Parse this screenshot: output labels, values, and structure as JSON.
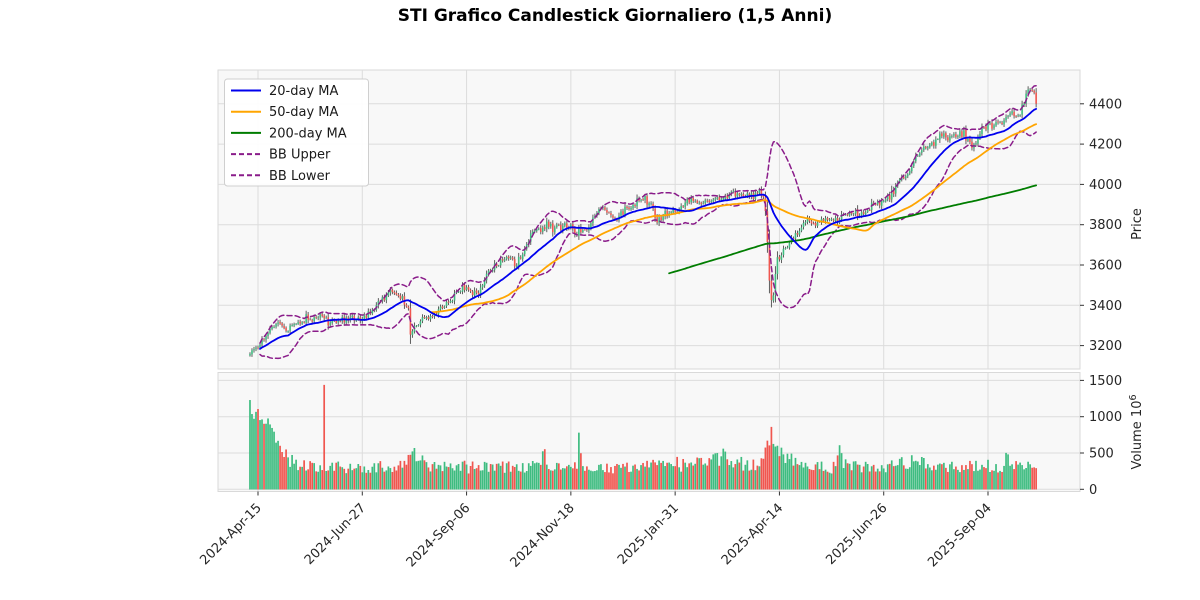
{
  "chart_data": {
    "type": "candlestick",
    "title": "STI Grafico Candlestick Giornaliero (1,5 Anni)",
    "legend": {
      "position": "upper-left",
      "items": [
        {
          "label": "20-day MA",
          "color": "#0000ee",
          "dash": "solid"
        },
        {
          "label": "50-day MA",
          "color": "#ffa500",
          "dash": "solid"
        },
        {
          "label": "200-day MA",
          "color": "#007d00",
          "dash": "solid"
        },
        {
          "label": "BB Upper",
          "color": "#8a1c8a",
          "dash": "dashed"
        },
        {
          "label": "BB Lower",
          "color": "#8a1c8a",
          "dash": "dashed"
        }
      ]
    },
    "x_axis": {
      "ticks": [
        {
          "label": "2024-Apr-15",
          "day": 4
        },
        {
          "label": "2024-Jun-27",
          "day": 56
        },
        {
          "label": "2024-Sep-06",
          "day": 108
        },
        {
          "label": "2024-Nov-18",
          "day": 160
        },
        {
          "label": "2025-Jan-31",
          "day": 212
        },
        {
          "label": "2025-Apr-14",
          "day": 264
        },
        {
          "label": "2025-Jun-26",
          "day": 316
        },
        {
          "label": "2025-Sep-04",
          "day": 368
        }
      ]
    },
    "price_axis": {
      "label": "Price",
      "ticks": [
        3200,
        3400,
        3600,
        3800,
        4000,
        4200,
        4400
      ]
    },
    "volume_axis": {
      "label_base": "Volume 10",
      "label_sup": "6",
      "ticks": [
        0,
        500,
        1000,
        1500
      ]
    },
    "num_days": 393,
    "close_keyframes": [
      [
        0,
        3160
      ],
      [
        2,
        3175
      ],
      [
        4,
        3180
      ],
      [
        7,
        3240
      ],
      [
        10,
        3280
      ],
      [
        14,
        3300
      ],
      [
        18,
        3285
      ],
      [
        22,
        3310
      ],
      [
        26,
        3320
      ],
      [
        30,
        3335
      ],
      [
        34,
        3345
      ],
      [
        38,
        3318
      ],
      [
        42,
        3320
      ],
      [
        46,
        3335
      ],
      [
        50,
        3330
      ],
      [
        56,
        3332
      ],
      [
        60,
        3370
      ],
      [
        64,
        3420
      ],
      [
        68,
        3455
      ],
      [
        71,
        3475
      ],
      [
        74,
        3445
      ],
      [
        77,
        3430
      ],
      [
        79,
        3380
      ],
      [
        80,
        3245
      ],
      [
        81,
        3260
      ],
      [
        83,
        3295
      ],
      [
        86,
        3320
      ],
      [
        90,
        3350
      ],
      [
        94,
        3370
      ],
      [
        98,
        3420
      ],
      [
        102,
        3460
      ],
      [
        106,
        3480
      ],
      [
        108,
        3490
      ],
      [
        111,
        3450
      ],
      [
        114,
        3465
      ],
      [
        118,
        3545
      ],
      [
        122,
        3600
      ],
      [
        126,
        3628
      ],
      [
        129,
        3640
      ],
      [
        132,
        3612
      ],
      [
        135,
        3655
      ],
      [
        138,
        3700
      ],
      [
        141,
        3755
      ],
      [
        144,
        3785
      ],
      [
        148,
        3810
      ],
      [
        151,
        3780
      ],
      [
        154,
        3795
      ],
      [
        157,
        3805
      ],
      [
        160,
        3790
      ],
      [
        163,
        3745
      ],
      [
        166,
        3760
      ],
      [
        170,
        3820
      ],
      [
        174,
        3865
      ],
      [
        177,
        3880
      ],
      [
        180,
        3860
      ],
      [
        183,
        3835
      ],
      [
        186,
        3855
      ],
      [
        190,
        3890
      ],
      [
        194,
        3915
      ],
      [
        197,
        3925
      ],
      [
        200,
        3890
      ],
      [
        203,
        3840
      ],
      [
        206,
        3850
      ],
      [
        209,
        3860
      ],
      [
        212,
        3870
      ],
      [
        216,
        3892
      ],
      [
        220,
        3910
      ],
      [
        224,
        3900
      ],
      [
        228,
        3928
      ],
      [
        232,
        3925
      ],
      [
        236,
        3945
      ],
      [
        240,
        3958
      ],
      [
        244,
        3935
      ],
      [
        248,
        3940
      ],
      [
        252,
        3950
      ],
      [
        255,
        3945
      ],
      [
        256,
        3920
      ],
      [
        257,
        3870
      ],
      [
        258,
        3710
      ],
      [
        259,
        3540
      ],
      [
        260,
        3420
      ],
      [
        261,
        3480
      ],
      [
        262,
        3560
      ],
      [
        263,
        3620
      ],
      [
        264,
        3650
      ],
      [
        266,
        3680
      ],
      [
        268,
        3705
      ],
      [
        272,
        3755
      ],
      [
        276,
        3788
      ],
      [
        280,
        3808
      ],
      [
        284,
        3828
      ],
      [
        288,
        3818
      ],
      [
        292,
        3838
      ],
      [
        296,
        3850
      ],
      [
        300,
        3858
      ],
      [
        304,
        3838
      ],
      [
        308,
        3868
      ],
      [
        312,
        3898
      ],
      [
        316,
        3928
      ],
      [
        320,
        3958
      ],
      [
        324,
        4000
      ],
      [
        328,
        4058
      ],
      [
        332,
        4118
      ],
      [
        336,
        4178
      ],
      [
        340,
        4218
      ],
      [
        344,
        4238
      ],
      [
        348,
        4228
      ],
      [
        352,
        4248
      ],
      [
        356,
        4238
      ],
      [
        358,
        4205
      ],
      [
        360,
        4190
      ],
      [
        362,
        4218
      ],
      [
        364,
        4255
      ],
      [
        366,
        4285
      ],
      [
        368,
        4298
      ],
      [
        372,
        4305
      ],
      [
        376,
        4330
      ],
      [
        380,
        4345
      ],
      [
        382,
        4330
      ],
      [
        384,
        4365
      ],
      [
        386,
        4415
      ],
      [
        388,
        4452
      ],
      [
        389,
        4468
      ],
      [
        390,
        4448
      ],
      [
        391,
        4435
      ],
      [
        392,
        4385
      ]
    ],
    "volume_keyframes": [
      [
        0,
        1180
      ],
      [
        2,
        1000
      ],
      [
        4,
        1120
      ],
      [
        6,
        950
      ],
      [
        8,
        880
      ],
      [
        10,
        960
      ],
      [
        12,
        740
      ],
      [
        14,
        620
      ],
      [
        16,
        500
      ],
      [
        18,
        430
      ],
      [
        20,
        390
      ],
      [
        24,
        340
      ],
      [
        28,
        310
      ],
      [
        36,
        290
      ],
      [
        37,
        1450
      ],
      [
        38,
        300
      ],
      [
        50,
        300
      ],
      [
        70,
        310
      ],
      [
        78,
        330
      ],
      [
        79,
        420
      ],
      [
        80,
        600
      ],
      [
        81,
        520
      ],
      [
        83,
        430
      ],
      [
        90,
        300
      ],
      [
        100,
        300
      ],
      [
        105,
        290
      ],
      [
        107,
        470
      ],
      [
        108,
        300
      ],
      [
        120,
        310
      ],
      [
        130,
        300
      ],
      [
        144,
        310
      ],
      [
        146,
        550
      ],
      [
        148,
        330
      ],
      [
        160,
        300
      ],
      [
        163,
        300
      ],
      [
        164,
        760
      ],
      [
        165,
        400
      ],
      [
        168,
        330
      ],
      [
        175,
        300
      ],
      [
        190,
        300
      ],
      [
        200,
        320
      ],
      [
        210,
        320
      ],
      [
        212,
        420
      ],
      [
        214,
        330
      ],
      [
        220,
        320
      ],
      [
        228,
        380
      ],
      [
        232,
        420
      ],
      [
        237,
        470
      ],
      [
        242,
        380
      ],
      [
        250,
        330
      ],
      [
        256,
        420
      ],
      [
        258,
        600
      ],
      [
        259,
        650
      ],
      [
        260,
        880
      ],
      [
        261,
        620
      ],
      [
        262,
        560
      ],
      [
        264,
        500
      ],
      [
        268,
        420
      ],
      [
        275,
        330
      ],
      [
        285,
        300
      ],
      [
        292,
        300
      ],
      [
        294,
        520
      ],
      [
        296,
        330
      ],
      [
        310,
        300
      ],
      [
        320,
        320
      ],
      [
        330,
        380
      ],
      [
        340,
        320
      ],
      [
        350,
        300
      ],
      [
        360,
        310
      ],
      [
        370,
        330
      ],
      [
        375,
        300
      ],
      [
        377,
        490
      ],
      [
        379,
        300
      ],
      [
        385,
        340
      ],
      [
        390,
        320
      ],
      [
        392,
        310
      ]
    ],
    "indicators": {
      "ma20_window": 20,
      "ma50_window": 50,
      "ma200_window": 200,
      "ma20_from": 5,
      "ma50_from": 90,
      "ma200_from": 209,
      "bb_from": 5,
      "bb_mult": 2
    },
    "colors": {
      "up": "#3ebc80",
      "down": "#f0564f",
      "wick": "#4d4d4d",
      "ma20": "#0000ee",
      "ma50": "#ffa500",
      "ma200": "#007d00",
      "bb": "#8a1c8a",
      "grid": "#dcdcdc",
      "panel_bg": "#f8f8f8",
      "panel_border": "#d9d9d9",
      "text": "#262626",
      "title": "#000000"
    },
    "render": {
      "seed": 3,
      "noise_amp": 26,
      "wiggle_a": 8,
      "wiggle_b": 6
    }
  }
}
